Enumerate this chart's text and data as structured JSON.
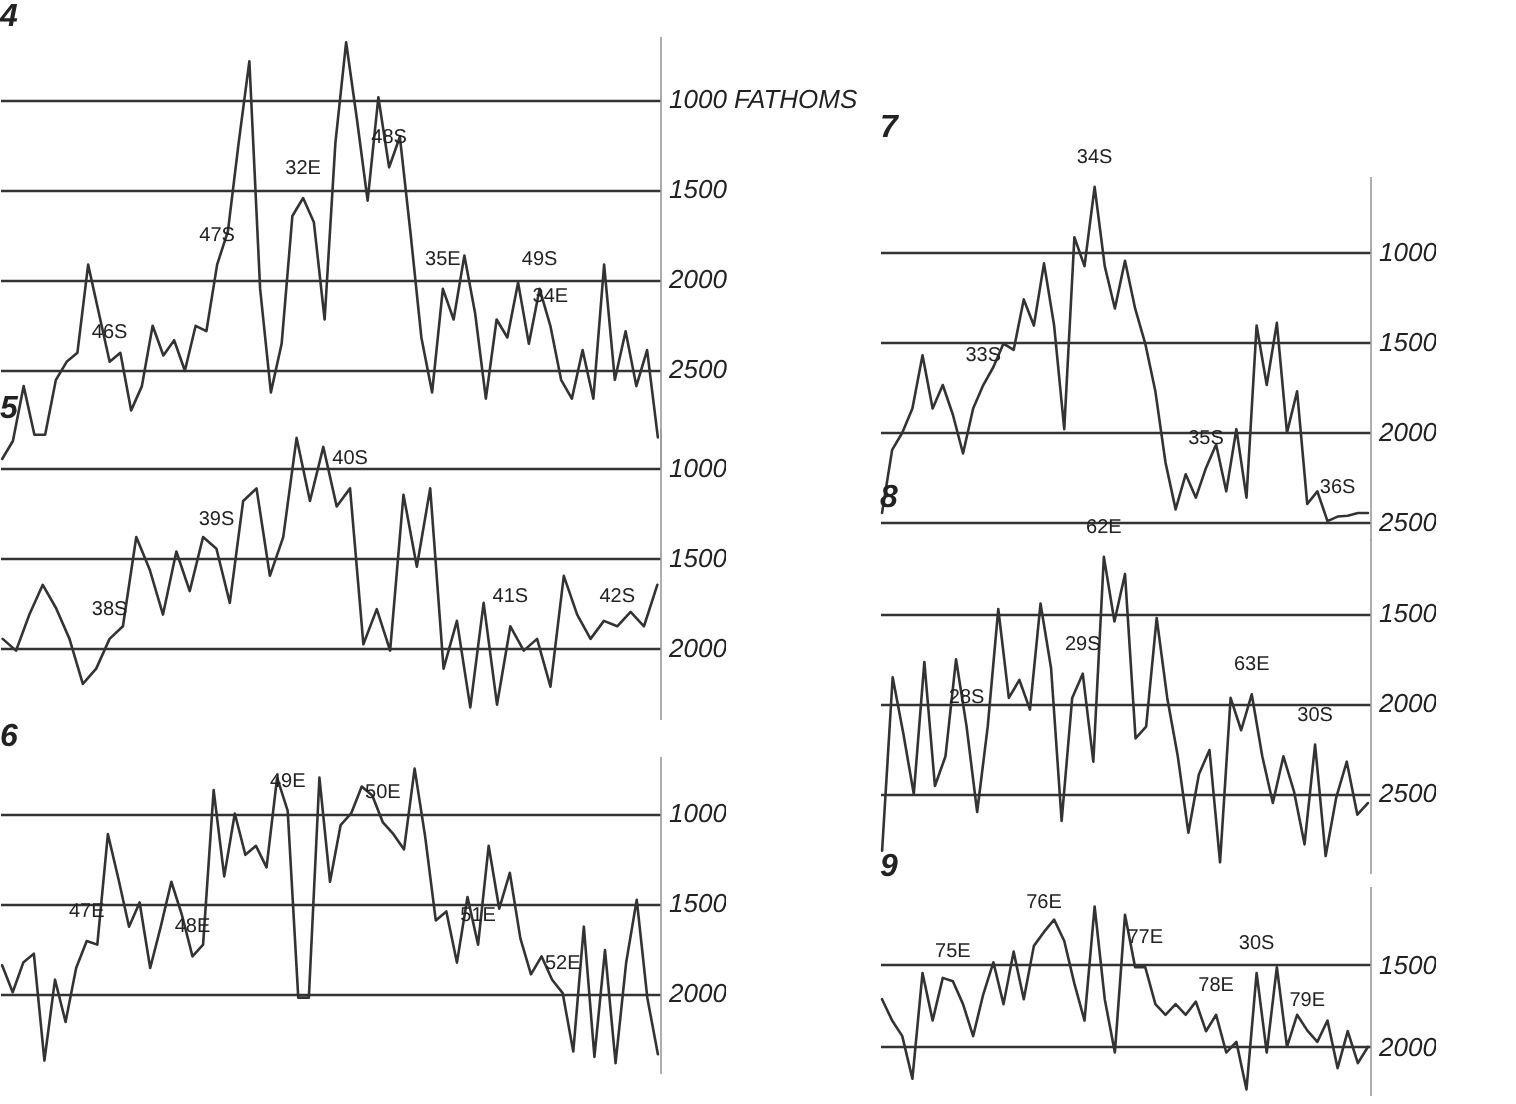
{
  "chart_data": [
    {
      "type": "line",
      "title": "4",
      "categories": [
        null,
        null,
        null,
        null,
        null,
        null,
        null,
        null,
        null,
        null,
        "46S",
        null,
        null,
        null,
        null,
        null,
        null,
        null,
        null,
        null,
        "47S",
        null,
        null,
        null,
        null,
        null,
        null,
        null,
        "32E",
        null,
        null,
        null,
        null,
        null,
        null,
        null,
        "48S",
        null,
        null,
        null,
        null,
        "35E",
        null,
        null,
        null,
        null,
        null,
        null,
        null,
        null,
        "49S",
        "34E",
        null,
        null,
        null,
        null,
        null,
        null,
        null,
        null,
        null,
        null
      ],
      "series": [
        {
          "color": "#333333",
          "values": [
            3000,
            2900,
            2595,
            2865,
            2865,
            2560,
            2460,
            2410,
            1920,
            2190,
            2460,
            2410,
            2730,
            2595,
            2260,
            2425,
            2340,
            2510,
            2260,
            2290,
            1920,
            1735,
            1245,
            790,
            2055,
            2630,
            2360,
            1650,
            1550,
            1685,
            2225,
            1245,
            685,
            1110,
            1565,
            990,
            1380,
            1210,
            1750,
            2325,
            2630,
            2055,
            2225,
            1870,
            2190,
            2665,
            2225,
            2325,
            2020,
            2360,
            2055,
            2260,
            2560,
            2665,
            2395,
            2665,
            1920,
            2560,
            2290,
            2595,
            2395,
            2880
          ]
        }
      ],
      "ylim": [
        3050,
        650
      ],
      "yticks": [
        {
          "value": 1000,
          "label": "1000 FATHOMS"
        },
        1500,
        2000,
        2500
      ],
      "grid": "y"
    },
    {
      "type": "line",
      "title": "5",
      "categories": [
        null,
        null,
        null,
        null,
        null,
        null,
        null,
        null,
        "38S",
        null,
        null,
        null,
        null,
        null,
        null,
        null,
        "39S",
        null,
        null,
        null,
        null,
        null,
        null,
        null,
        null,
        null,
        "40S",
        null,
        null,
        null,
        null,
        null,
        null,
        null,
        null,
        null,
        null,
        null,
        "41S",
        null,
        null,
        null,
        null,
        null,
        null,
        null,
        "42S",
        null,
        null,
        null
      ],
      "series": [
        {
          "color": "#333333",
          "values": [
            1950,
            2015,
            1815,
            1650,
            1780,
            1950,
            2200,
            2115,
            1950,
            1880,
            1385,
            1565,
            1815,
            1465,
            1685,
            1385,
            1450,
            1750,
            1185,
            1115,
            1600,
            1385,
            835,
            1185,
            885,
            1215,
            1115,
            1980,
            1785,
            2015,
            1150,
            1550,
            1115,
            2115,
            1850,
            2330,
            1750,
            2315,
            1880,
            2015,
            1950,
            2215,
            1600,
            1815,
            1950,
            1850,
            1880,
            1800,
            1880,
            1650
          ]
        }
      ],
      "ylim": [
        2400,
        780
      ],
      "yticks": [
        1000,
        1500,
        2000
      ],
      "grid": "y"
    },
    {
      "type": "line",
      "title": "6",
      "categories": [
        null,
        null,
        null,
        null,
        null,
        null,
        null,
        null,
        "47E",
        null,
        null,
        null,
        null,
        null,
        null,
        null,
        null,
        null,
        "48E",
        null,
        null,
        null,
        null,
        null,
        null,
        null,
        null,
        "49E",
        null,
        null,
        null,
        null,
        null,
        null,
        null,
        null,
        "50E",
        null,
        null,
        null,
        null,
        null,
        null,
        null,
        null,
        "51E",
        null,
        null,
        null,
        null,
        null,
        null,
        null,
        "52E",
        null,
        null,
        null,
        null,
        null,
        null,
        null,
        null,
        null
      ],
      "series": [
        {
          "color": "#333333",
          "values": [
            1845,
            1995,
            1830,
            1780,
            2375,
            1925,
            2160,
            1860,
            1710,
            1730,
            1115,
            1365,
            1630,
            1495,
            1860,
            1630,
            1380,
            1565,
            1795,
            1730,
            870,
            1350,
            1000,
            1230,
            1180,
            1300,
            800,
            985,
            2025,
            2025,
            800,
            1380,
            1065,
            1000,
            850,
            900,
            1050,
            1115,
            1200,
            750,
            1130,
            1595,
            1545,
            1830,
            1465,
            1730,
            1180,
            1530,
            1330,
            1695,
            1895,
            1795,
            1925,
            2000,
            2325,
            1630,
            2355,
            1760,
            2390,
            1830,
            1480,
            2025,
            2340
          ]
        }
      ],
      "ylim": [
        2450,
        680
      ],
      "yticks": [
        1000,
        1500,
        2000
      ],
      "grid": "y"
    },
    {
      "type": "line",
      "title": "7",
      "categories": [
        null,
        null,
        null,
        null,
        null,
        null,
        null,
        null,
        null,
        null,
        "33S",
        null,
        null,
        null,
        null,
        null,
        null,
        null,
        null,
        null,
        null,
        "34S",
        null,
        null,
        null,
        null,
        null,
        null,
        null,
        null,
        null,
        null,
        "35S",
        null,
        null,
        null,
        null,
        null,
        null,
        null,
        null,
        null,
        null,
        null,
        null,
        "36S",
        null,
        null,
        null
      ],
      "series": [
        {
          "color": "#333333",
          "values": [
            2450,
            2100,
            2005,
            1870,
            1575,
            1870,
            1740,
            1905,
            2120,
            1870,
            1740,
            1640,
            1510,
            1545,
            1265,
            1410,
            1065,
            1410,
            1985,
            920,
            1080,
            640,
            1080,
            1315,
            1050,
            1315,
            1510,
            1775,
            2170,
            2430,
            2235,
            2365,
            2200,
            2070,
            2330,
            1985,
            2365,
            1410,
            1740,
            1395,
            2005,
            1775,
            2400,
            2330,
            2495,
            2470,
            2465,
            2450,
            2450
          ]
        }
      ],
      "ylim": [
        2600,
        580
      ],
      "yticks": [
        1000,
        1500,
        2000,
        2500
      ],
      "grid": "y"
    },
    {
      "type": "line",
      "title": "8",
      "categories": [
        null,
        null,
        null,
        null,
        null,
        null,
        null,
        null,
        "28S",
        null,
        null,
        null,
        null,
        null,
        null,
        null,
        null,
        null,
        null,
        "29S",
        null,
        "62E",
        null,
        null,
        null,
        null,
        null,
        null,
        null,
        null,
        null,
        null,
        null,
        null,
        null,
        "63E",
        null,
        null,
        null,
        null,
        null,
        "30S",
        null,
        null,
        null,
        null,
        null
      ],
      "series": [
        {
          "color": "#333333",
          "values": [
            2820,
            1855,
            2165,
            2505,
            1770,
            2460,
            2295,
            1755,
            2130,
            2605,
            2130,
            1475,
            1970,
            1870,
            2035,
            1445,
            1805,
            2655,
            1970,
            1835,
            2325,
            1185,
            1545,
            1280,
            2195,
            2130,
            1525,
            1970,
            2295,
            2720,
            2395,
            2260,
            2885,
            1970,
            2150,
            1950,
            2295,
            2555,
            2295,
            2490,
            2785,
            2230,
            2850,
            2525,
            2325,
            2620,
            2555
          ]
        }
      ],
      "ylim": [
        2950,
        1080
      ],
      "yticks": [
        1500,
        2000,
        2500
      ],
      "grid": "y"
    },
    {
      "type": "line",
      "title": "9",
      "categories": [
        null,
        null,
        null,
        null,
        null,
        null,
        null,
        "75E",
        null,
        null,
        null,
        null,
        null,
        null,
        null,
        null,
        "76E",
        null,
        null,
        null,
        null,
        null,
        null,
        null,
        null,
        null,
        "77E",
        null,
        null,
        null,
        null,
        null,
        null,
        "78E",
        null,
        null,
        null,
        "30S",
        null,
        null,
        null,
        null,
        "79E",
        null,
        null,
        null,
        null,
        null,
        null
      ],
      "series": [
        {
          "color": "#333333",
          "values": [
            1710,
            1840,
            1935,
            2195,
            1550,
            1840,
            1580,
            1600,
            1740,
            1935,
            1680,
            1485,
            1740,
            1420,
            1710,
            1385,
            1300,
            1225,
            1355,
            1615,
            1840,
            1145,
            1710,
            2035,
            1195,
            1515,
            1515,
            1740,
            1805,
            1740,
            1805,
            1725,
            1905,
            1805,
            2035,
            1970,
            2260,
            1550,
            2035,
            1515,
            2000,
            1805,
            1900,
            1970,
            1840,
            2130,
            1905,
            2100,
            2000
          ]
        }
      ],
      "ylim": [
        2300,
        1020
      ],
      "yticks": [
        1500,
        2000
      ],
      "grid": "y"
    }
  ]
}
